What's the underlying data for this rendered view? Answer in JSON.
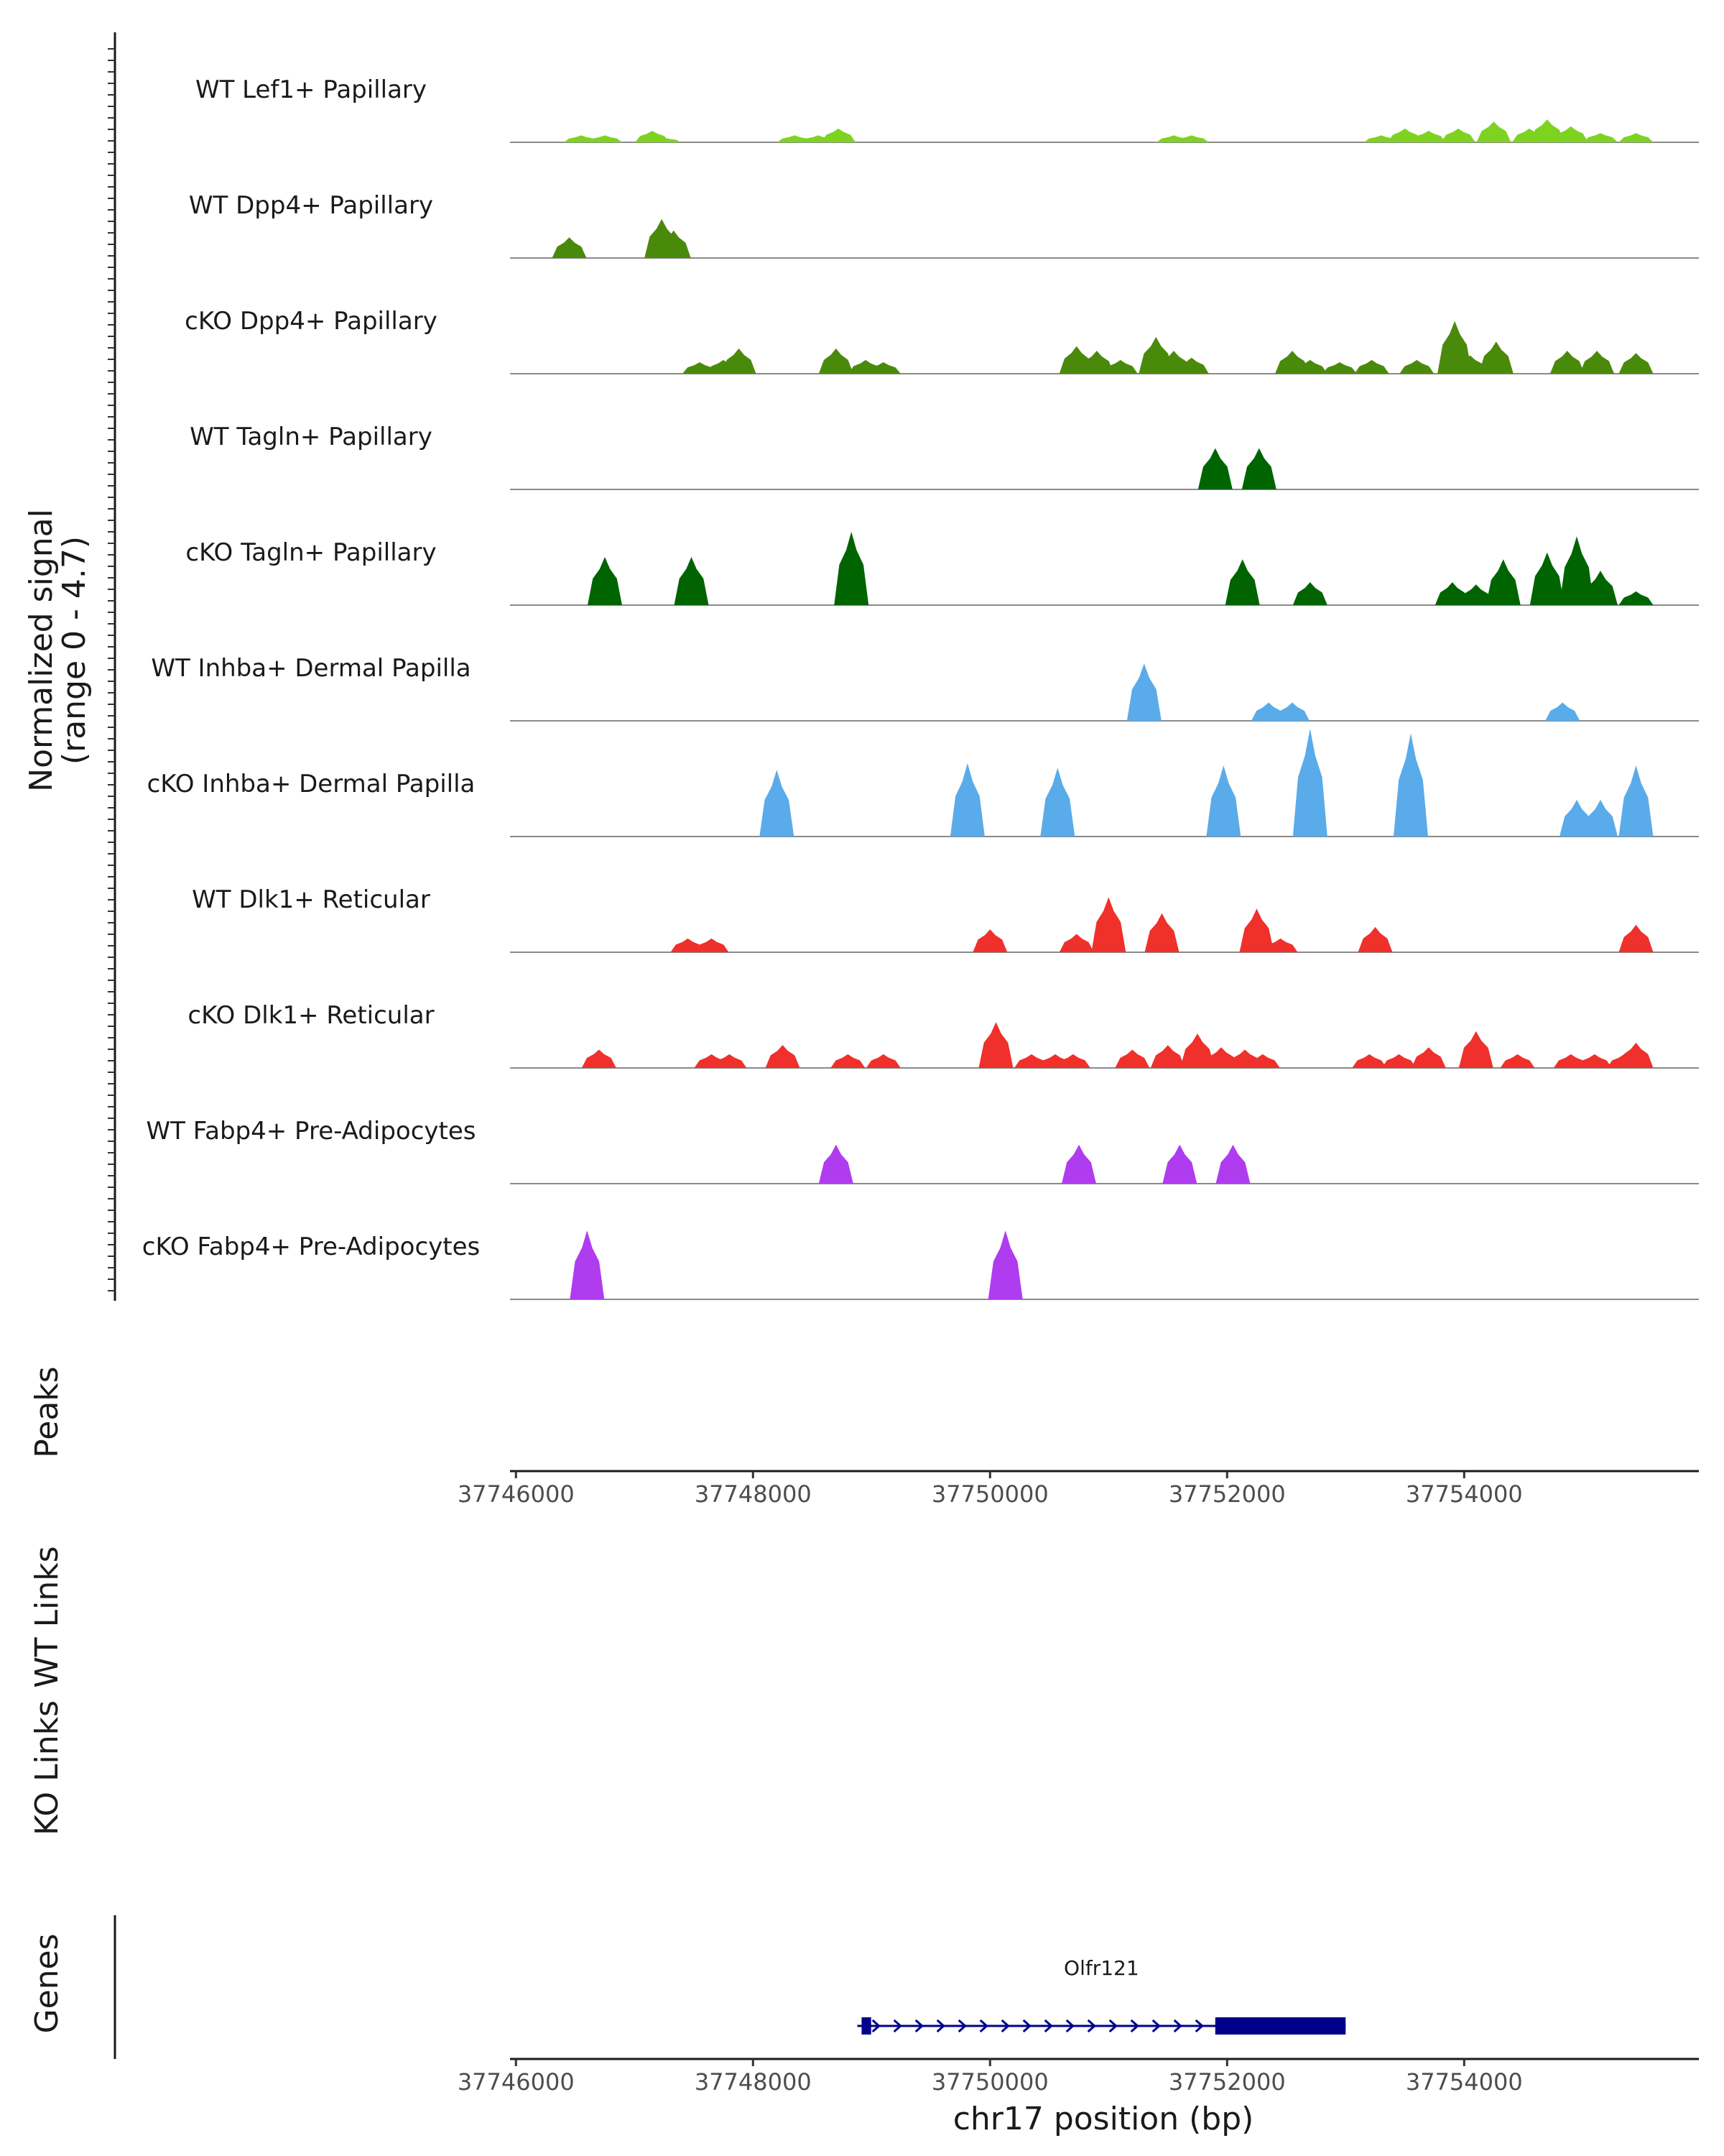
{
  "chart_data": {
    "type": "area",
    "title": "",
    "y_axis_title": "Normalized signal",
    "y_axis_subtitle": "(range 0 - 4.7)",
    "ylim": [
      0,
      4.7
    ],
    "xlim": [
      37745950,
      37755980
    ],
    "xlabel": "chr17 position (bp)",
    "x_ticks": [
      37746000,
      37748000,
      37750000,
      37752000,
      37754000
    ],
    "x_tick_labels": [
      "37746000",
      "37748000",
      "37750000",
      "37752000",
      "37754000"
    ],
    "panel_labels": {
      "peaks": "Peaks",
      "wt_links": "WT Links",
      "ko_links": "KO Links",
      "genes": "Genes"
    },
    "series": [
      {
        "name": "WT Lef1+ Papillary",
        "color": "#7ed321",
        "peaks": [
          [
            37746550,
            0.3
          ],
          [
            37746750,
            0.3
          ],
          [
            37747150,
            0.5
          ],
          [
            37747250,
            0.2
          ],
          [
            37748350,
            0.3
          ],
          [
            37748550,
            0.3
          ],
          [
            37748720,
            0.6
          ],
          [
            37751550,
            0.3
          ],
          [
            37751700,
            0.3
          ],
          [
            37753300,
            0.3
          ],
          [
            37753500,
            0.6
          ],
          [
            37753700,
            0.5
          ],
          [
            37753950,
            0.6
          ],
          [
            37754250,
            0.9
          ],
          [
            37754550,
            0.6
          ],
          [
            37754700,
            1.0
          ],
          [
            37754900,
            0.7
          ],
          [
            37755150,
            0.4
          ],
          [
            37755450,
            0.4
          ]
        ]
      },
      {
        "name": "WT Dpp4+ Papillary",
        "color": "#4a8a0b",
        "peaks": [
          [
            37746450,
            0.9
          ],
          [
            37747230,
            1.7
          ],
          [
            37747330,
            1.2
          ]
        ]
      },
      {
        "name": "cKO Dpp4+ Papillary",
        "color": "#4a8a0b",
        "peaks": [
          [
            37747550,
            0.5
          ],
          [
            37747750,
            0.6
          ],
          [
            37747880,
            1.1
          ],
          [
            37748700,
            1.1
          ],
          [
            37748950,
            0.6
          ],
          [
            37749100,
            0.5
          ],
          [
            37750730,
            1.2
          ],
          [
            37750900,
            1.0
          ],
          [
            37751100,
            0.6
          ],
          [
            37751400,
            1.6
          ],
          [
            37751550,
            1.0
          ],
          [
            37751700,
            0.7
          ],
          [
            37752550,
            1.0
          ],
          [
            37752700,
            0.6
          ],
          [
            37752950,
            0.5
          ],
          [
            37753220,
            0.6
          ],
          [
            37753600,
            0.6
          ],
          [
            37753920,
            2.3
          ],
          [
            37754050,
            0.8
          ],
          [
            37754270,
            1.4
          ],
          [
            37754870,
            1.0
          ],
          [
            37755120,
            1.0
          ],
          [
            37755450,
            0.9
          ]
        ]
      },
      {
        "name": "WT Tagln+ Papillary",
        "color": "#006400",
        "peaks": [
          [
            37751900,
            1.8
          ],
          [
            37752270,
            1.8
          ]
        ]
      },
      {
        "name": "cKO Tagln+ Papillary",
        "color": "#006400",
        "peaks": [
          [
            37746750,
            2.1
          ],
          [
            37747480,
            2.1
          ],
          [
            37748830,
            3.2
          ],
          [
            37752130,
            2.0
          ],
          [
            37752700,
            1.0
          ],
          [
            37753900,
            1.0
          ],
          [
            37754100,
            0.9
          ],
          [
            37754330,
            2.0
          ],
          [
            37754700,
            2.3
          ],
          [
            37754950,
            3.0
          ],
          [
            37755150,
            1.5
          ],
          [
            37755450,
            0.6
          ]
        ]
      },
      {
        "name": "WT Inhba+ Dermal Papilla",
        "color": "#5aabea",
        "peaks": [
          [
            37751300,
            2.5
          ],
          [
            37752350,
            0.8
          ],
          [
            37752550,
            0.8
          ],
          [
            37754830,
            0.8
          ]
        ]
      },
      {
        "name": "cKO Inhba+ Dermal Papilla",
        "color": "#5aabea",
        "peaks": [
          [
            37748200,
            2.9
          ],
          [
            37749810,
            3.2
          ],
          [
            37750570,
            3.0
          ],
          [
            37751970,
            3.1
          ],
          [
            37752700,
            4.7
          ],
          [
            37753550,
            4.5
          ],
          [
            37754950,
            1.6
          ],
          [
            37755150,
            1.6
          ],
          [
            37755450,
            3.1
          ]
        ]
      },
      {
        "name": "WT Dlk1+ Reticular",
        "color": "#f0302b",
        "peaks": [
          [
            37747450,
            0.6
          ],
          [
            37747650,
            0.6
          ],
          [
            37750000,
            1.0
          ],
          [
            37750730,
            0.8
          ],
          [
            37751000,
            2.4
          ],
          [
            37751450,
            1.7
          ],
          [
            37752250,
            1.9
          ],
          [
            37752450,
            0.6
          ],
          [
            37753250,
            1.1
          ],
          [
            37755450,
            1.2
          ]
        ]
      },
      {
        "name": "cKO Dlk1+ Reticular",
        "color": "#f0302b",
        "peaks": [
          [
            37746700,
            0.8
          ],
          [
            37747650,
            0.6
          ],
          [
            37747800,
            0.6
          ],
          [
            37748250,
            1.0
          ],
          [
            37748800,
            0.6
          ],
          [
            37749100,
            0.6
          ],
          [
            37750050,
            2.0
          ],
          [
            37750350,
            0.6
          ],
          [
            37750550,
            0.6
          ],
          [
            37750700,
            0.6
          ],
          [
            37751200,
            0.8
          ],
          [
            37751500,
            1.0
          ],
          [
            37751750,
            1.5
          ],
          [
            37751950,
            0.9
          ],
          [
            37752150,
            0.8
          ],
          [
            37752300,
            0.6
          ],
          [
            37753200,
            0.6
          ],
          [
            37753450,
            0.6
          ],
          [
            37753700,
            0.9
          ],
          [
            37754100,
            1.6
          ],
          [
            37754450,
            0.6
          ],
          [
            37754900,
            0.6
          ],
          [
            37755100,
            0.6
          ],
          [
            37755350,
            0.6
          ],
          [
            37755450,
            1.1
          ]
        ]
      },
      {
        "name": "WT Fabp4+ Pre-Adipocytes",
        "color": "#b03cf0",
        "peaks": [
          [
            37748700,
            1.7
          ],
          [
            37750750,
            1.7
          ],
          [
            37751600,
            1.7
          ],
          [
            37752050,
            1.7
          ]
        ]
      },
      {
        "name": "cKO Fabp4+ Pre-Adipocytes",
        "color": "#b03cf0",
        "peaks": [
          [
            37746600,
            3.0
          ],
          [
            37750130,
            3.0
          ]
        ]
      }
    ],
    "gene": {
      "name": "Olfr121",
      "start": 37748880,
      "end": 37753000,
      "cds_start": 37751900,
      "utr5_end": 37748960,
      "strand": "+",
      "color": "#00008b"
    }
  }
}
